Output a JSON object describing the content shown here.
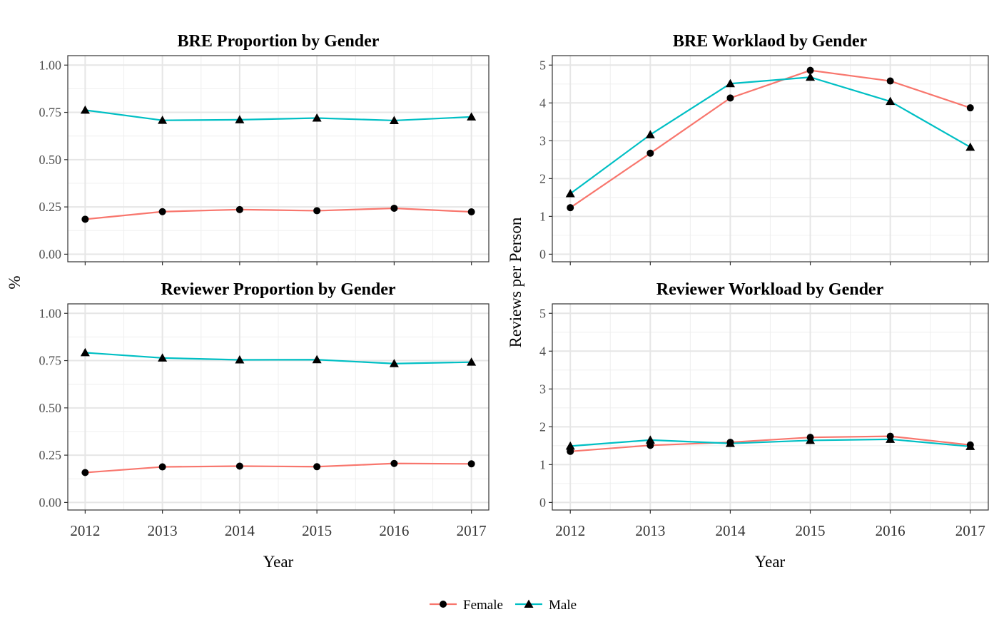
{
  "legend": {
    "placement": "bottom",
    "entries": [
      {
        "name": "Female",
        "color": "#F8766D",
        "shape": "circle"
      },
      {
        "name": "Male",
        "color": "#00BFC4",
        "shape": "triangle"
      }
    ]
  },
  "axis_titles": {
    "left_y": "%",
    "right_y": "Reviews per Person",
    "left_x": "Year",
    "right_x": "Year"
  },
  "chart_data": [
    {
      "type": "line",
      "title": "BRE Proportion by Gender",
      "ylabel": "%",
      "xlabel": "",
      "x": [
        2012,
        2013,
        2014,
        2015,
        2016,
        2017
      ],
      "ylim": [
        -0.04,
        1.05
      ],
      "yticks": [
        "0.00",
        "0.25",
        "0.50",
        "0.75",
        "1.00"
      ],
      "xticks": [],
      "grid": true,
      "series": [
        {
          "name": "Female",
          "values": [
            0.185,
            0.225,
            0.236,
            0.23,
            0.243,
            0.224
          ]
        },
        {
          "name": "Male",
          "values": [
            0.762,
            0.708,
            0.711,
            0.72,
            0.707,
            0.726
          ]
        }
      ]
    },
    {
      "type": "line",
      "title": "BRE Worklaod by Gender",
      "ylabel": "Reviews per Person",
      "xlabel": "",
      "x": [
        2012,
        2013,
        2014,
        2015,
        2016,
        2017
      ],
      "ylim": [
        -0.2,
        5.25
      ],
      "yticks": [
        "0",
        "1",
        "2",
        "3",
        "4",
        "5"
      ],
      "xticks": [],
      "grid": true,
      "series": [
        {
          "name": "Female",
          "values": [
            1.23,
            2.67,
            4.13,
            4.86,
            4.58,
            3.87
          ]
        },
        {
          "name": "Male",
          "values": [
            1.6,
            3.16,
            4.51,
            4.68,
            4.04,
            2.83
          ]
        }
      ]
    },
    {
      "type": "line",
      "title": "Reviewer Proportion by Gender",
      "ylabel": "%",
      "xlabel": "Year",
      "x": [
        2012,
        2013,
        2014,
        2015,
        2016,
        2017
      ],
      "ylim": [
        -0.04,
        1.05
      ],
      "yticks": [
        "0.00",
        "0.25",
        "0.50",
        "0.75",
        "1.00"
      ],
      "xticks": [
        "2012",
        "2013",
        "2014",
        "2015",
        "2016",
        "2017"
      ],
      "grid": true,
      "series": [
        {
          "name": "Female",
          "values": [
            0.158,
            0.188,
            0.192,
            0.189,
            0.206,
            0.204
          ]
        },
        {
          "name": "Male",
          "values": [
            0.792,
            0.764,
            0.754,
            0.755,
            0.734,
            0.742
          ]
        }
      ]
    },
    {
      "type": "line",
      "title": "Reviewer Workload by Gender",
      "ylabel": "Reviews per Person",
      "xlabel": "Year",
      "x": [
        2012,
        2013,
        2014,
        2015,
        2016,
        2017
      ],
      "ylim": [
        -0.2,
        5.25
      ],
      "yticks": [
        "0",
        "1",
        "2",
        "3",
        "4",
        "5"
      ],
      "xticks": [
        "2012",
        "2013",
        "2014",
        "2015",
        "2016",
        "2017"
      ],
      "grid": true,
      "series": [
        {
          "name": "Female",
          "values": [
            1.35,
            1.51,
            1.59,
            1.72,
            1.75,
            1.52
          ]
        },
        {
          "name": "Male",
          "values": [
            1.49,
            1.65,
            1.56,
            1.64,
            1.67,
            1.48
          ]
        }
      ]
    }
  ]
}
